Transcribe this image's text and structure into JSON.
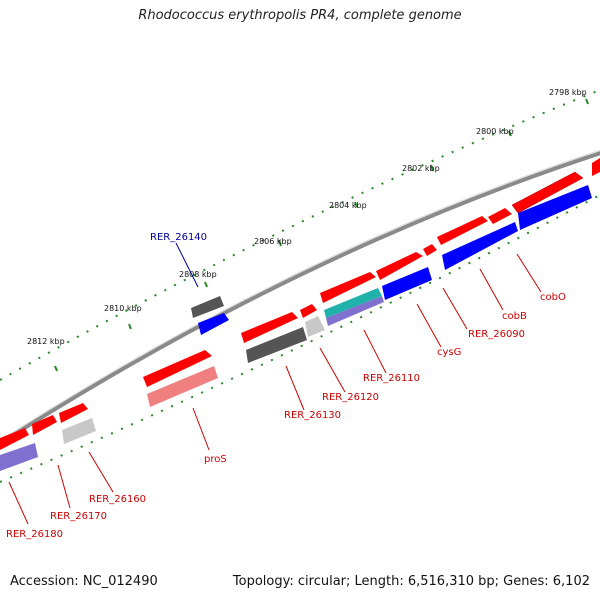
{
  "title": "Rhodococcus erythropolis PR4, complete genome",
  "footer": {
    "accession": "Accession: NC_012490",
    "summary": "Topology: circular; Length: 6,516,310 bp; Genes: 6,102"
  },
  "colors": {
    "forward": "#ff0000",
    "reverse": "#0000ff",
    "pseudo": "#555555",
    "trna_like": "#c8c8c8",
    "teal": "#20b2aa",
    "lavender": "#8070d0",
    "pink": "#f08080",
    "tick": "#2a8a2a",
    "label_red": "#cc0000",
    "label_blue": "#000099"
  },
  "scale_labels": [
    "2798 kbp",
    "2800 kbp",
    "2802 kbp",
    "2804 kbp",
    "2806 kbp",
    "2808 kbp",
    "2810 kbp",
    "2812 kbp"
  ],
  "gene_labels": [
    "RER_26140",
    "proS",
    "RER_26130",
    "RER_26120",
    "RER_26110",
    "cysG",
    "RER_26090",
    "cobB",
    "cobO",
    "RER_26160",
    "RER_26170",
    "RER_26180"
  ]
}
